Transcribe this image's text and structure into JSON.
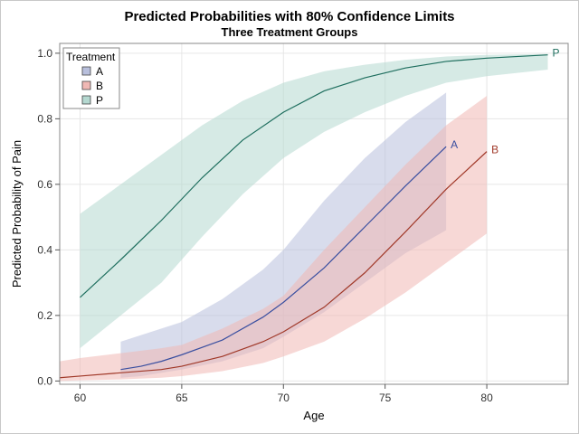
{
  "chart_data": {
    "type": "line",
    "title": "Predicted Probabilities with 80% Confidence Limits",
    "subtitle": "Three Treatment Groups",
    "xlabel": "Age",
    "ylabel": "Predicted Probability of Pain",
    "xlim": [
      59,
      84
    ],
    "ylim": [
      -0.01,
      1.03
    ],
    "xticks": [
      60,
      65,
      70,
      75,
      80
    ],
    "yticks": [
      0.0,
      0.2,
      0.4,
      0.6,
      0.8,
      1.0
    ],
    "ytick_labels": [
      "0.0",
      "0.2",
      "0.4",
      "0.6",
      "0.8",
      "1.0"
    ],
    "grid": true,
    "legend": {
      "title": "Treatment",
      "placement": "top-left"
    },
    "series": [
      {
        "name": "A",
        "color": "#3a4fa0",
        "band_color": "#b8bfdc",
        "x": [
          62,
          63,
          64,
          65,
          67,
          69,
          70,
          72,
          74,
          76,
          78
        ],
        "y": [
          0.035,
          0.045,
          0.06,
          0.08,
          0.125,
          0.195,
          0.24,
          0.345,
          0.47,
          0.595,
          0.715
        ],
        "lower": [
          0.01,
          0.015,
          0.025,
          0.035,
          0.06,
          0.1,
          0.135,
          0.21,
          0.3,
          0.39,
          0.46
        ],
        "upper": [
          0.12,
          0.14,
          0.16,
          0.18,
          0.25,
          0.34,
          0.4,
          0.55,
          0.68,
          0.79,
          0.88
        ]
      },
      {
        "name": "B",
        "color": "#a03828",
        "band_color": "#f0b8b4",
        "x": [
          59,
          60,
          62,
          64,
          65,
          67,
          69,
          70,
          72,
          74,
          76,
          78,
          80
        ],
        "y": [
          0.01,
          0.015,
          0.025,
          0.035,
          0.045,
          0.075,
          0.12,
          0.15,
          0.225,
          0.33,
          0.455,
          0.585,
          0.7
        ],
        "lower": [
          0.0,
          0.002,
          0.005,
          0.01,
          0.015,
          0.03,
          0.055,
          0.075,
          0.12,
          0.19,
          0.27,
          0.36,
          0.45
        ],
        "upper": [
          0.06,
          0.07,
          0.085,
          0.1,
          0.11,
          0.16,
          0.22,
          0.26,
          0.4,
          0.53,
          0.66,
          0.78,
          0.87
        ]
      },
      {
        "name": "P",
        "color": "#1e6e5e",
        "band_color": "#b4d8d0",
        "x": [
          60,
          62,
          64,
          66,
          68,
          70,
          72,
          74,
          76,
          78,
          80,
          83
        ],
        "y": [
          0.255,
          0.37,
          0.49,
          0.62,
          0.735,
          0.82,
          0.885,
          0.925,
          0.955,
          0.975,
          0.985,
          0.995
        ],
        "lower": [
          0.1,
          0.2,
          0.3,
          0.44,
          0.57,
          0.68,
          0.76,
          0.82,
          0.87,
          0.91,
          0.93,
          0.95
        ],
        "upper": [
          0.51,
          0.6,
          0.69,
          0.78,
          0.855,
          0.91,
          0.945,
          0.965,
          0.98,
          0.99,
          0.995,
          0.998
        ]
      }
    ]
  }
}
